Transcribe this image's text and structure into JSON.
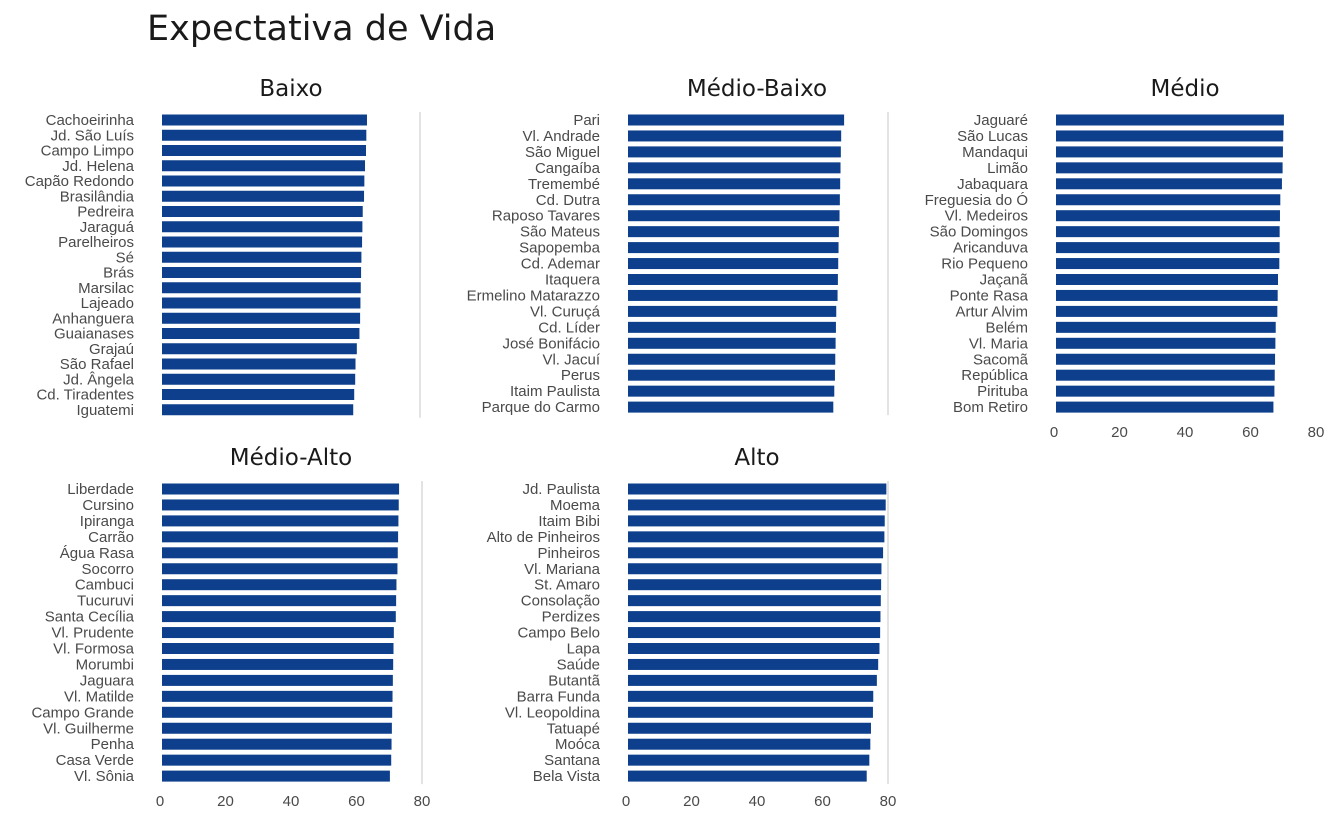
{
  "chart_data": {
    "title": "Expectativa de Vida",
    "type": "bar",
    "orientation": "horizontal",
    "xlim": [
      0,
      80
    ],
    "xticks": [
      0,
      20,
      40,
      60,
      80
    ],
    "bar_color": "#0d3f8c",
    "panels": [
      {
        "title": "Baixo",
        "categories": [
          "Cachoeirinha",
          "Jd. São Luís",
          "Campo Limpo",
          "Jd. Helena",
          "Capão Redondo",
          "Brasilândia",
          "Pedreira",
          "Jaraguá",
          "Parelheiros",
          "Sé",
          "Brás",
          "Marsilac",
          "Lajeado",
          "Anhanguera",
          "Guaianases",
          "Grajaú",
          "São Rafael",
          "Jd. Ângela",
          "Cd. Tiradentes",
          "Iguatemi"
        ],
        "values": [
          63.2,
          63.0,
          62.9,
          62.6,
          62.4,
          62.3,
          61.9,
          61.8,
          61.7,
          61.5,
          61.4,
          61.3,
          61.2,
          61.1,
          60.9,
          60.1,
          59.7,
          59.6,
          59.3,
          59.0
        ]
      },
      {
        "title": "Médio-Baixo",
        "categories": [
          "Pari",
          "Vl. Andrade",
          "São Miguel",
          "Cangaíba",
          "Tremembé",
          "Cd. Dutra",
          "Raposo Tavares",
          "São Mateus",
          "Sapopemba",
          "Cd. Ademar",
          "Itaquera",
          "Ermelino Matarazzo",
          "Vl. Curuçá",
          "Cd. Líder",
          "José Bonifácio",
          "Vl. Jacuí",
          "Perus",
          "Itaim Paulista",
          "Parque do Carmo"
        ],
        "values": [
          66.6,
          65.7,
          65.6,
          65.5,
          65.4,
          65.3,
          65.2,
          65.0,
          64.9,
          64.8,
          64.7,
          64.6,
          64.2,
          64.1,
          64.0,
          63.9,
          63.8,
          63.6,
          63.3
        ]
      },
      {
        "title": "Médio",
        "categories": [
          "Jaguaré",
          "São Lucas",
          "Mandaqui",
          "Limão",
          "Jabaquara",
          "Freguesia do Ó",
          "Vl. Medeiros",
          "São Domingos",
          "Aricanduva",
          "Rio Pequeno",
          "Jaçanã",
          "Ponte Rasa",
          "Artur Alvim",
          "Belém",
          "Vl. Maria",
          "Sacomã",
          "República",
          "Pirituba",
          "Bom Retiro"
        ],
        "values": [
          70.2,
          70.0,
          69.9,
          69.8,
          69.6,
          69.1,
          69.0,
          68.9,
          68.9,
          68.8,
          68.4,
          68.3,
          68.2,
          67.7,
          67.6,
          67.5,
          67.4,
          67.3,
          67.0
        ]
      },
      {
        "title": "Médio-Alto",
        "categories": [
          "Liberdade",
          "Cursino",
          "Ipiranga",
          "Carrão",
          "Água Rasa",
          "Socorro",
          "Cambuci",
          "Tucuruvi",
          "Santa Cecília",
          "Vl. Prudente",
          "Vl. Formosa",
          "Morumbi",
          "Jaguara",
          "Vl. Matilde",
          "Campo Grande",
          "Vl. Guilherme",
          "Penha",
          "Casa Verde",
          "Vl. Sônia"
        ],
        "values": [
          73.0,
          72.9,
          72.8,
          72.7,
          72.6,
          72.5,
          72.2,
          72.1,
          72.0,
          71.4,
          71.3,
          71.2,
          71.1,
          71.0,
          70.9,
          70.8,
          70.7,
          70.6,
          70.2
        ]
      },
      {
        "title": "Alto",
        "categories": [
          "Jd. Paulista",
          "Moema",
          "Itaim Bibi",
          "Alto de Pinheiros",
          "Pinheiros",
          "Vl. Mariana",
          "St. Amaro",
          "Consolação",
          "Perdizes",
          "Campo Belo",
          "Lapa",
          "Saúde",
          "Butantã",
          "Barra Funda",
          "Vl. Leopoldina",
          "Tatuapé",
          "Moóca",
          "Santana",
          "Bela Vista"
        ],
        "values": [
          79.5,
          79.3,
          79.0,
          78.9,
          78.5,
          78.0,
          77.9,
          77.8,
          77.7,
          77.6,
          77.4,
          77.0,
          76.6,
          75.5,
          75.4,
          74.8,
          74.6,
          74.3,
          73.5
        ]
      }
    ]
  }
}
